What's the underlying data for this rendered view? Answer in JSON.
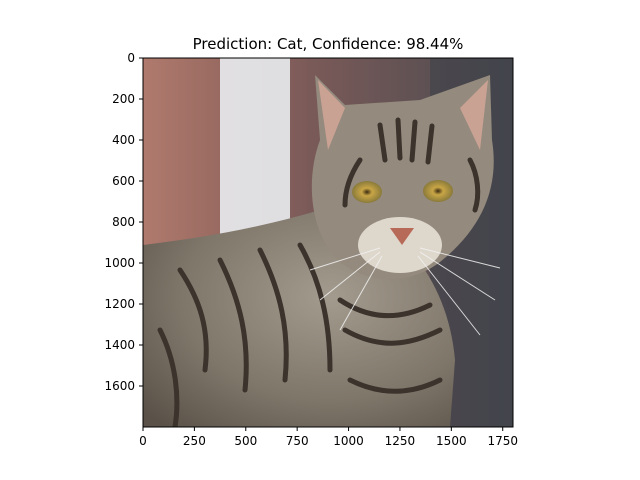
{
  "chart_data": {
    "type": "image",
    "title": "Prediction: Cat, Confidence: 98.44%",
    "xlabel": "",
    "ylabel": "",
    "xlim": [
      0,
      1800
    ],
    "ylim": [
      1800,
      0
    ],
    "x_ticks": [
      0,
      250,
      500,
      750,
      1000,
      1250,
      1500,
      1750
    ],
    "y_ticks": [
      0,
      200,
      400,
      600,
      800,
      1000,
      1200,
      1400,
      1600
    ],
    "grid": false,
    "image": {
      "subject": "tabby cat photograph",
      "colors": {
        "background_red": "#b07a6e",
        "background_white": "#e9ecef",
        "background_dark": "#4a4a50",
        "fur_light": "#a39b8e",
        "fur_dark": "#3b332c",
        "eye": "#c9a646",
        "nose": "#b86a58"
      }
    }
  },
  "colors": {
    "axis": "#000000",
    "background": "#ffffff"
  }
}
